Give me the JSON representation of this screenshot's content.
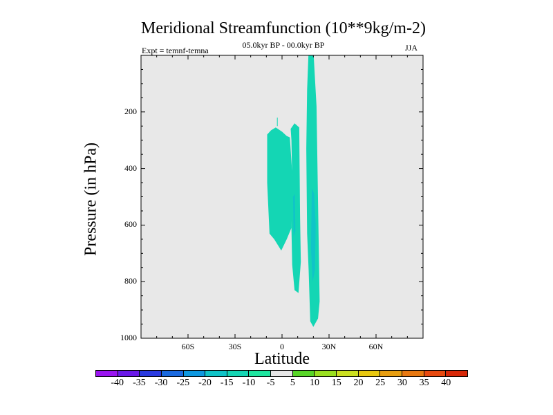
{
  "chart_data": {
    "type": "contour",
    "title": "Meridional Streamfunction (10**9kg/m-2)",
    "subtitle_left": "Expt = temnf-temna",
    "subtitle_center": "05.0kyr BP - 00.0kyr BP",
    "subtitle_right": "JJA",
    "xlabel": "Latitude",
    "ylabel": "Pressure (in hPa)",
    "xlim": [
      -90,
      90
    ],
    "ylim": [
      0,
      1000
    ],
    "y_inverted": true,
    "x_ticks": [
      {
        "value": -60,
        "label": "60S"
      },
      {
        "value": -30,
        "label": "30S"
      },
      {
        "value": 0,
        "label": "0"
      },
      {
        "value": 30,
        "label": "30N"
      },
      {
        "value": 60,
        "label": "60N"
      }
    ],
    "y_ticks": [
      {
        "value": 200,
        "label": "200"
      },
      {
        "value": 400,
        "label": "400"
      },
      {
        "value": 600,
        "label": "600"
      },
      {
        "value": 800,
        "label": "800"
      },
      {
        "value": 1000,
        "label": "1000"
      }
    ],
    "background_color": "#e8e8e8",
    "regions": [
      {
        "name": "tropical-cell-west",
        "level": "-10 to -5",
        "color": "#14d6b4",
        "points": [
          [
            -9.5,
            280
          ],
          [
            -7,
            265
          ],
          [
            -4,
            255
          ],
          [
            0,
            270
          ],
          [
            3,
            285
          ],
          [
            5,
            290
          ],
          [
            7,
            460
          ],
          [
            6,
            610
          ],
          [
            3,
            650
          ],
          [
            -0.5,
            690
          ],
          [
            -5,
            650
          ],
          [
            -8,
            630
          ],
          [
            -9.5,
            450
          ]
        ]
      },
      {
        "name": "tropical-cell-center",
        "level": "-10 to -5",
        "color": "#14d6b4",
        "points": [
          [
            5.5,
            260
          ],
          [
            8,
            240
          ],
          [
            11,
            255
          ],
          [
            11.5,
            570
          ],
          [
            12,
            730
          ],
          [
            10.5,
            840
          ],
          [
            8,
            830
          ],
          [
            6.5,
            740
          ],
          [
            6,
            610
          ],
          [
            6.5,
            440
          ],
          [
            6,
            300
          ]
        ]
      },
      {
        "name": "tropical-cell-east",
        "level": "-10 to -5",
        "color": "#14d6b4",
        "points": [
          [
            17,
            -20
          ],
          [
            20,
            -20
          ],
          [
            22,
            180
          ],
          [
            23,
            520
          ],
          [
            24,
            870
          ],
          [
            23,
            930
          ],
          [
            20,
            960
          ],
          [
            18,
            940
          ],
          [
            17,
            760
          ],
          [
            16,
            630
          ],
          [
            15.5,
            330
          ],
          [
            16,
            120
          ]
        ]
      },
      {
        "name": "tropical-core-east",
        "level": "-15 to -10",
        "color": "#10c4c8",
        "points": [
          [
            19,
            470
          ],
          [
            20.5,
            490
          ],
          [
            21.5,
            600
          ],
          [
            21,
            760
          ],
          [
            19.5,
            800
          ],
          [
            18.5,
            680
          ]
        ]
      },
      {
        "name": "tropical-core-center",
        "level": "-15 to -10",
        "color": "#10c4c8",
        "points": [
          [
            7,
            500
          ],
          [
            8.2,
            490
          ],
          [
            8.5,
            620
          ],
          [
            7.4,
            640
          ]
        ]
      },
      {
        "name": "tropical-spike",
        "level": "-10 to -5",
        "color": "#14d6b4",
        "points": [
          [
            -3.2,
            220
          ],
          [
            -2.8,
            220
          ],
          [
            -2.8,
            250
          ],
          [
            -3.2,
            250
          ]
        ]
      }
    ],
    "colorbar": {
      "levels": [
        "-40",
        "-35",
        "-30",
        "-25",
        "-20",
        "-15",
        "-10",
        "-5",
        "5",
        "10",
        "15",
        "20",
        "25",
        "30",
        "35",
        "40"
      ],
      "colors": [
        "#9a14f0",
        "#6a18e8",
        "#2a3ae0",
        "#1a6ae0",
        "#0e98e0",
        "#10c4c8",
        "#14d6b4",
        "#1ee6a0",
        "#e6e6e6",
        "#58d628",
        "#9ae020",
        "#cce020",
        "#e8c810",
        "#e89e10",
        "#e87810",
        "#e84a10",
        "#d82808"
      ]
    }
  }
}
